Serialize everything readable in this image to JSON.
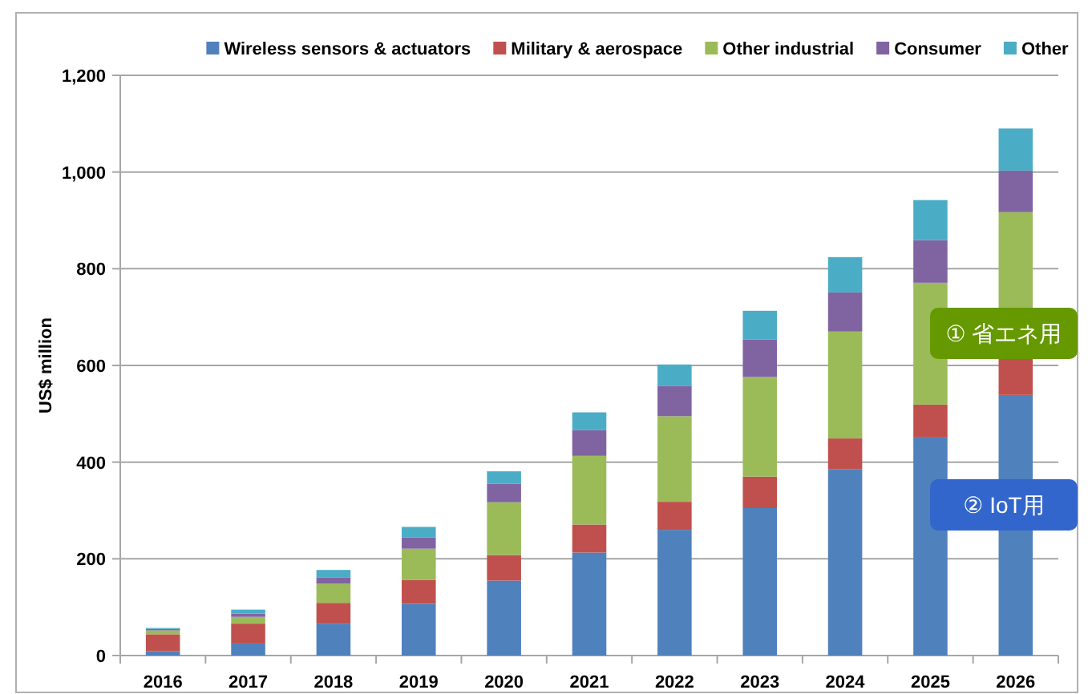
{
  "chart_data": {
    "type": "bar",
    "stacked": true,
    "ylabel": "US$ million",
    "categories": [
      "2016",
      "2017",
      "2018",
      "2019",
      "2020",
      "2021",
      "2022",
      "2023",
      "2024",
      "2025",
      "2026"
    ],
    "series": [
      {
        "name": "Wireless sensors & actuators",
        "color": "#4f81bd",
        "values": [
          9,
          25,
          66,
          107,
          155,
          213,
          260,
          305,
          385,
          451,
          539
        ]
      },
      {
        "name": "Military & aerospace",
        "color": "#c0504d",
        "values": [
          35,
          41,
          43,
          49,
          53,
          58,
          58,
          65,
          64,
          68,
          78
        ]
      },
      {
        "name": "Other industrial",
        "color": "#9bbb59",
        "values": [
          8,
          14,
          40,
          65,
          109,
          142,
          177,
          206,
          221,
          252,
          300
        ]
      },
      {
        "name": "Consumer",
        "color": "#8064a2",
        "values": [
          3,
          7,
          12,
          23,
          38,
          53,
          63,
          78,
          81,
          88,
          86
        ]
      },
      {
        "name": "Other",
        "color": "#4bacc6",
        "values": [
          2,
          8,
          16,
          22,
          26,
          37,
          44,
          59,
          73,
          83,
          87
        ]
      }
    ],
    "ylim": [
      0,
      1200
    ],
    "yticks": [
      0,
      200,
      400,
      600,
      800,
      {
        "value": 1000,
        "label": "1,000"
      },
      {
        "value": 1200,
        "label": "1,200"
      }
    ],
    "grid": "y",
    "legend": "top",
    "annotations": [
      "① 省エネ用",
      "② IoT用"
    ]
  }
}
